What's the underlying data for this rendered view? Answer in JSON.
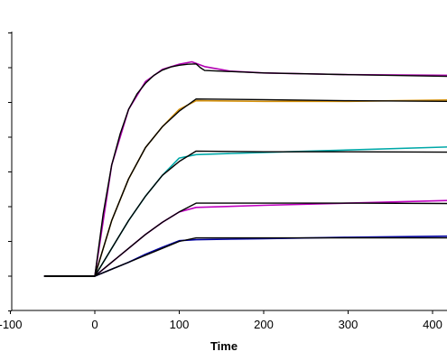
{
  "chart_data": {
    "type": "line",
    "xlabel": "Time",
    "ylabel": "",
    "xlim": [
      -100,
      420
    ],
    "ylim": [
      -10,
      70
    ],
    "x_ticks": [
      -100,
      0,
      100,
      200,
      300,
      400
    ],
    "x_tick_labels": [
      "-100",
      "0",
      "100",
      "200",
      "300",
      "400"
    ],
    "y_ticks": [
      -10,
      0,
      10,
      20,
      30,
      40,
      50,
      60,
      70
    ],
    "grid": false,
    "legend": "none",
    "series": [
      {
        "color": "#b000b0",
        "points": [
          [
            -60,
            0
          ],
          [
            0,
            0
          ],
          [
            20,
            32
          ],
          [
            40,
            48
          ],
          [
            60,
            56
          ],
          [
            80,
            59.5
          ],
          [
            100,
            61
          ],
          [
            115,
            61.7
          ],
          [
            130,
            60.3
          ],
          [
            160,
            59
          ],
          [
            200,
            58.5
          ],
          [
            300,
            58
          ],
          [
            420,
            57.8
          ]
        ]
      },
      {
        "color": "#d4900a",
        "points": [
          [
            -60,
            0
          ],
          [
            0,
            0
          ],
          [
            20,
            16
          ],
          [
            40,
            28
          ],
          [
            60,
            37
          ],
          [
            80,
            43
          ],
          [
            100,
            48
          ],
          [
            120,
            50.5
          ],
          [
            200,
            50.3
          ],
          [
            300,
            50.3
          ],
          [
            420,
            50.7
          ]
        ]
      },
      {
        "color": "#00a8a8",
        "points": [
          [
            -60,
            0
          ],
          [
            0,
            0
          ],
          [
            20,
            8
          ],
          [
            40,
            16
          ],
          [
            60,
            23
          ],
          [
            80,
            29
          ],
          [
            100,
            34
          ],
          [
            120,
            35
          ],
          [
            200,
            35.6
          ],
          [
            300,
            36.3
          ],
          [
            420,
            37.2
          ]
        ]
      },
      {
        "color": "#c000c0",
        "points": [
          [
            -60,
            0
          ],
          [
            0,
            0
          ],
          [
            20,
            4
          ],
          [
            40,
            8
          ],
          [
            60,
            12
          ],
          [
            80,
            15.5
          ],
          [
            100,
            18.5
          ],
          [
            120,
            19.8
          ],
          [
            200,
            20.4
          ],
          [
            300,
            21
          ],
          [
            420,
            21.8
          ]
        ]
      },
      {
        "color": "#0000a0",
        "points": [
          [
            -60,
            0
          ],
          [
            0,
            0
          ],
          [
            20,
            2
          ],
          [
            40,
            4
          ],
          [
            60,
            6.3
          ],
          [
            80,
            8.3
          ],
          [
            100,
            10.2
          ],
          [
            120,
            10.5
          ],
          [
            200,
            10.8
          ],
          [
            300,
            11.2
          ],
          [
            420,
            11.5
          ]
        ]
      },
      {
        "color": "#000000",
        "points": [
          [
            -60,
            0
          ],
          [
            0,
            0
          ],
          [
            10,
            18
          ],
          [
            20,
            32
          ],
          [
            30,
            41
          ],
          [
            40,
            48
          ],
          [
            50,
            52.5
          ],
          [
            60,
            55.5
          ],
          [
            70,
            57.8
          ],
          [
            80,
            59.3
          ],
          [
            90,
            60.2
          ],
          [
            100,
            60.7
          ],
          [
            110,
            61
          ],
          [
            120,
            61.1
          ],
          [
            125,
            60
          ],
          [
            130,
            59.2
          ],
          [
            200,
            58.5
          ],
          [
            300,
            58
          ],
          [
            420,
            57.5
          ]
        ]
      },
      {
        "color": "#000000",
        "points": [
          [
            -60,
            0
          ],
          [
            0,
            0
          ],
          [
            20,
            16
          ],
          [
            40,
            28
          ],
          [
            60,
            37
          ],
          [
            80,
            43
          ],
          [
            100,
            47.5
          ],
          [
            120,
            51
          ],
          [
            200,
            50.8
          ],
          [
            300,
            50.5
          ],
          [
            420,
            50.3
          ]
        ]
      },
      {
        "color": "#000000",
        "points": [
          [
            -60,
            0
          ],
          [
            0,
            0
          ],
          [
            20,
            8
          ],
          [
            40,
            16
          ],
          [
            60,
            23
          ],
          [
            80,
            29
          ],
          [
            100,
            33
          ],
          [
            120,
            36
          ],
          [
            200,
            35.8
          ],
          [
            300,
            35.8
          ],
          [
            420,
            35.7
          ]
        ]
      },
      {
        "color": "#000000",
        "points": [
          [
            -60,
            0
          ],
          [
            0,
            0
          ],
          [
            20,
            4
          ],
          [
            40,
            8
          ],
          [
            60,
            12
          ],
          [
            80,
            15.5
          ],
          [
            100,
            18.5
          ],
          [
            120,
            21
          ],
          [
            200,
            21
          ],
          [
            300,
            21
          ],
          [
            420,
            20.9
          ]
        ]
      },
      {
        "color": "#000000",
        "points": [
          [
            -60,
            0
          ],
          [
            0,
            0
          ],
          [
            20,
            2
          ],
          [
            40,
            4
          ],
          [
            60,
            6
          ],
          [
            80,
            8
          ],
          [
            100,
            10
          ],
          [
            120,
            11
          ],
          [
            200,
            11
          ],
          [
            300,
            11
          ],
          [
            420,
            11
          ]
        ]
      }
    ]
  }
}
